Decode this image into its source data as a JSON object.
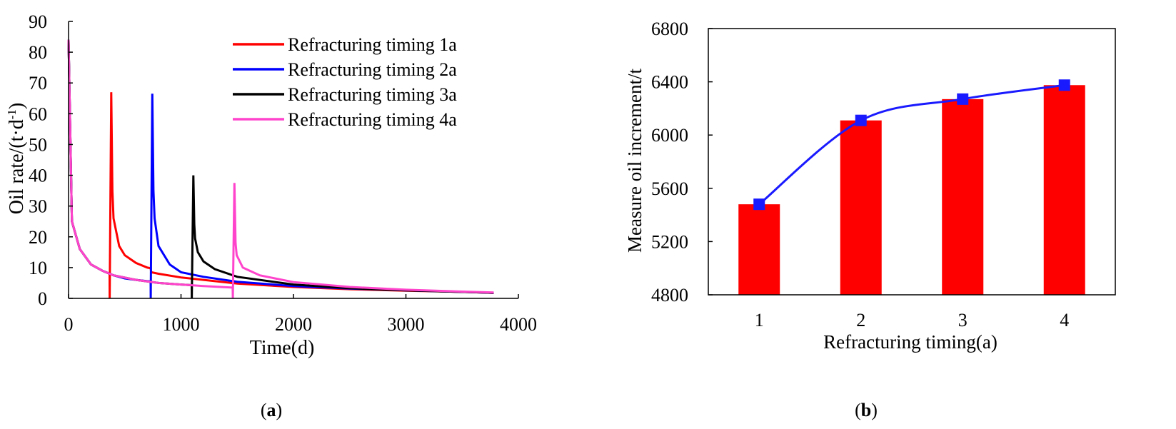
{
  "chart_data": [
    {
      "type": "line",
      "panel": "a",
      "xlabel": "Time(d)",
      "ylabel": "Oil rate/(t·d",
      "ylabel_sup": "-1",
      "ylabel_end": ")",
      "xlim": [
        0,
        4000
      ],
      "ylim": [
        0,
        90
      ],
      "x_ticks": [
        0,
        1000,
        2000,
        3000,
        4000
      ],
      "y_ticks": [
        0,
        10,
        20,
        30,
        40,
        50,
        60,
        70,
        80,
        90
      ],
      "grid": false,
      "legend_position": "top-right",
      "series": [
        {
          "name": "Refracturing timing 1a",
          "color": "#ff0000",
          "x": [
            0,
            30,
            100,
            200,
            300,
            365,
            366,
            380,
            390,
            400,
            450,
            500,
            600,
            700,
            730,
            735,
            800,
            1000,
            1500,
            2000,
            2500,
            3000,
            3500,
            3780
          ],
          "y": [
            84,
            25,
            16,
            11,
            9,
            8,
            0,
            67,
            35,
            26,
            17,
            14,
            11.5,
            10,
            9.8,
            8.5,
            8,
            6.8,
            4.8,
            3.7,
            3.0,
            2.5,
            2.1,
            1.8
          ]
        },
        {
          "name": "Refracturing timing 2a",
          "color": "#0000ff",
          "x": [
            0,
            30,
            100,
            200,
            300,
            400,
            500,
            600,
            700,
            730,
            731,
            745,
            755,
            765,
            800,
            900,
            1000,
            1200,
            1500,
            2000,
            2500,
            3000,
            3500,
            3780
          ],
          "y": [
            84,
            25,
            16,
            11,
            9,
            7.5,
            6.5,
            6,
            5.6,
            5.5,
            0,
            66.5,
            35,
            26,
            17,
            11,
            8.5,
            7,
            5.4,
            4,
            3.2,
            2.6,
            2.1,
            1.8
          ]
        },
        {
          "name": "Refracturing timing 3a",
          "color": "#000000",
          "x": [
            0,
            30,
            100,
            200,
            300,
            400,
            600,
            800,
            1000,
            1095,
            1096,
            1110,
            1118,
            1125,
            1150,
            1200,
            1300,
            1500,
            2000,
            2500,
            3000,
            3500,
            3780
          ],
          "y": [
            84,
            25,
            16,
            11,
            9,
            7.5,
            6,
            5,
            4.5,
            4.3,
            0,
            40,
            24,
            19.5,
            15,
            12,
            9.5,
            7,
            4.5,
            3.3,
            2.6,
            2.1,
            1.8
          ]
        },
        {
          "name": "Refracturing timing 4a",
          "color": "#ff44cc",
          "x": [
            0,
            30,
            100,
            200,
            300,
            400,
            600,
            800,
            1000,
            1200,
            1460,
            1461,
            1475,
            1485,
            1495,
            1550,
            1700,
            2000,
            2500,
            3000,
            3500,
            3780
          ],
          "y": [
            84,
            25,
            16,
            11,
            9,
            7.5,
            6,
            5,
            4.5,
            4,
            3.5,
            0,
            37.5,
            18,
            14,
            10,
            7.5,
            5.3,
            3.7,
            2.8,
            2.2,
            1.9
          ]
        }
      ]
    },
    {
      "type": "bar",
      "panel": "b",
      "categories": [
        "1",
        "2",
        "3",
        "4"
      ],
      "values": [
        5480,
        6110,
        6270,
        6375
      ],
      "line_values": [
        5480,
        6110,
        6270,
        6375
      ],
      "xlabel": "Refracturing timing(a)",
      "ylabel": "Measure oil increment/t",
      "ylim": [
        4800,
        6800
      ],
      "y_ticks": [
        4800,
        5200,
        5600,
        6000,
        6400,
        6800
      ],
      "grid": false,
      "bar_color": "#ff0000",
      "line_color": "#1a1aff",
      "marker_color": "#1a1aff"
    }
  ],
  "captions": {
    "a_open": "(",
    "a_letter": "a",
    "a_close": ")",
    "b_open": "(",
    "b_letter": "b",
    "b_close": ")"
  }
}
